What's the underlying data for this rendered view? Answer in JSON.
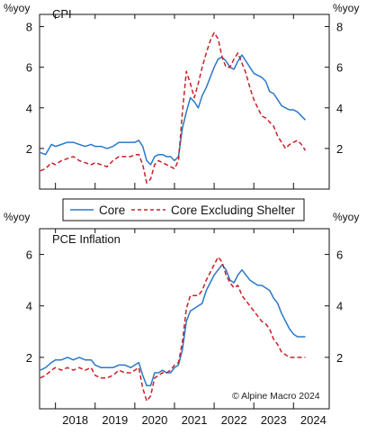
{
  "chart_data": [
    {
      "type": "line",
      "title": "CPI",
      "unit_left": "%yoy",
      "unit_right": "%yoy",
      "ylim": [
        0,
        8.6
      ],
      "yticks": [
        2,
        4,
        6,
        8
      ],
      "xlim": [
        2017.6,
        2024.9
      ],
      "series": [
        {
          "name": "Core",
          "color": "#2a78c8",
          "style": "solid",
          "x": [
            2017.62,
            2017.75,
            2017.9,
            2018.0,
            2018.15,
            2018.3,
            2018.45,
            2018.6,
            2018.75,
            2018.9,
            2019.0,
            2019.15,
            2019.3,
            2019.45,
            2019.6,
            2019.75,
            2019.9,
            2020.0,
            2020.1,
            2020.2,
            2020.3,
            2020.4,
            2020.5,
            2020.6,
            2020.7,
            2020.8,
            2020.9,
            2021.0,
            2021.1,
            2021.2,
            2021.3,
            2021.4,
            2021.5,
            2021.6,
            2021.7,
            2021.8,
            2021.9,
            2022.0,
            2022.1,
            2022.2,
            2022.3,
            2022.4,
            2022.5,
            2022.6,
            2022.7,
            2022.8,
            2022.9,
            2023.0,
            2023.1,
            2023.2,
            2023.3,
            2023.4,
            2023.5,
            2023.6,
            2023.7,
            2023.8,
            2023.9,
            2024.0,
            2024.1,
            2024.2,
            2024.3
          ],
          "y": [
            1.8,
            1.7,
            2.2,
            2.1,
            2.2,
            2.3,
            2.3,
            2.2,
            2.1,
            2.2,
            2.1,
            2.1,
            2.0,
            2.1,
            2.3,
            2.3,
            2.3,
            2.3,
            2.4,
            2.1,
            1.4,
            1.2,
            1.6,
            1.7,
            1.7,
            1.6,
            1.6,
            1.4,
            1.6,
            3.0,
            3.8,
            4.5,
            4.3,
            4.0,
            4.6,
            5.0,
            5.5,
            6.0,
            6.4,
            6.5,
            6.3,
            6.0,
            5.9,
            6.3,
            6.6,
            6.3,
            6.0,
            5.7,
            5.6,
            5.5,
            5.3,
            4.8,
            4.7,
            4.4,
            4.1,
            4.0,
            3.9,
            3.9,
            3.8,
            3.6,
            3.4
          ]
        },
        {
          "name": "Core Excluding Shelter",
          "color": "#c8202a",
          "style": "dashed",
          "x": [
            2017.62,
            2017.75,
            2017.9,
            2018.0,
            2018.15,
            2018.3,
            2018.45,
            2018.6,
            2018.75,
            2018.9,
            2019.0,
            2019.15,
            2019.3,
            2019.45,
            2019.6,
            2019.75,
            2019.9,
            2020.0,
            2020.1,
            2020.2,
            2020.3,
            2020.4,
            2020.5,
            2020.6,
            2020.7,
            2020.8,
            2020.9,
            2021.0,
            2021.1,
            2021.2,
            2021.3,
            2021.4,
            2021.5,
            2021.6,
            2021.7,
            2021.8,
            2021.9,
            2022.0,
            2022.1,
            2022.2,
            2022.3,
            2022.4,
            2022.5,
            2022.6,
            2022.7,
            2022.8,
            2022.9,
            2023.0,
            2023.1,
            2023.2,
            2023.3,
            2023.4,
            2023.5,
            2023.6,
            2023.7,
            2023.8,
            2023.9,
            2024.0,
            2024.1,
            2024.2,
            2024.3
          ],
          "y": [
            0.9,
            1.0,
            1.3,
            1.2,
            1.4,
            1.5,
            1.6,
            1.4,
            1.3,
            1.2,
            1.3,
            1.2,
            1.1,
            1.4,
            1.6,
            1.6,
            1.6,
            1.7,
            1.7,
            1.2,
            0.3,
            0.5,
            1.2,
            1.4,
            1.3,
            1.2,
            1.1,
            1.0,
            1.4,
            3.8,
            5.8,
            5.2,
            4.5,
            5.2,
            6.0,
            6.7,
            7.3,
            7.7,
            7.4,
            6.5,
            6.0,
            6.0,
            6.4,
            6.7,
            6.2,
            5.7,
            5.0,
            4.4,
            4.0,
            3.6,
            3.5,
            3.3,
            3.1,
            2.6,
            2.3,
            2.0,
            2.2,
            2.3,
            2.4,
            2.2,
            1.9
          ]
        }
      ]
    },
    {
      "type": "line",
      "title": "PCE Inflation",
      "unit_left": "%yoy",
      "unit_right": "%yoy",
      "ylim": [
        0,
        7.0
      ],
      "yticks": [
        2,
        4,
        6
      ],
      "xlim": [
        2017.6,
        2024.9
      ],
      "xticks": [
        "2018",
        "2019",
        "2020",
        "2021",
        "2022",
        "2023",
        "2024"
      ],
      "credit": "© Alpine Macro 2024",
      "series": [
        {
          "name": "Core",
          "color": "#2a78c8",
          "style": "solid",
          "x": [
            2017.62,
            2017.75,
            2017.9,
            2018.0,
            2018.15,
            2018.3,
            2018.45,
            2018.6,
            2018.75,
            2018.9,
            2019.0,
            2019.15,
            2019.3,
            2019.45,
            2019.6,
            2019.75,
            2019.9,
            2020.0,
            2020.1,
            2020.2,
            2020.3,
            2020.4,
            2020.5,
            2020.6,
            2020.7,
            2020.8,
            2020.9,
            2021.0,
            2021.1,
            2021.2,
            2021.3,
            2021.4,
            2021.5,
            2021.6,
            2021.7,
            2021.8,
            2021.9,
            2022.0,
            2022.1,
            2022.2,
            2022.3,
            2022.4,
            2022.5,
            2022.6,
            2022.7,
            2022.8,
            2022.9,
            2023.0,
            2023.1,
            2023.2,
            2023.3,
            2023.4,
            2023.5,
            2023.6,
            2023.7,
            2023.8,
            2023.9,
            2024.0,
            2024.1,
            2024.2,
            2024.3
          ],
          "y": [
            1.5,
            1.6,
            1.8,
            1.9,
            1.9,
            2.0,
            1.9,
            2.0,
            1.9,
            1.9,
            1.7,
            1.6,
            1.6,
            1.6,
            1.7,
            1.7,
            1.6,
            1.7,
            1.8,
            1.3,
            0.9,
            0.9,
            1.4,
            1.4,
            1.5,
            1.4,
            1.4,
            1.6,
            1.7,
            2.3,
            3.4,
            3.8,
            3.9,
            4.0,
            4.1,
            4.6,
            4.9,
            5.2,
            5.4,
            5.6,
            5.4,
            5.0,
            4.9,
            5.2,
            5.4,
            5.2,
            5.0,
            4.9,
            4.8,
            4.8,
            4.7,
            4.6,
            4.3,
            4.1,
            3.7,
            3.4,
            3.1,
            2.9,
            2.8,
            2.8,
            2.8
          ]
        },
        {
          "name": "Core Excluding Shelter",
          "color": "#c8202a",
          "style": "dashed",
          "x": [
            2017.62,
            2017.75,
            2017.9,
            2018.0,
            2018.15,
            2018.3,
            2018.45,
            2018.6,
            2018.75,
            2018.9,
            2019.0,
            2019.15,
            2019.3,
            2019.45,
            2019.6,
            2019.75,
            2019.9,
            2020.0,
            2020.1,
            2020.2,
            2020.3,
            2020.4,
            2020.5,
            2020.6,
            2020.7,
            2020.8,
            2020.9,
            2021.0,
            2021.1,
            2021.2,
            2021.3,
            2021.4,
            2021.5,
            2021.6,
            2021.7,
            2021.8,
            2021.9,
            2022.0,
            2022.1,
            2022.2,
            2022.3,
            2022.4,
            2022.5,
            2022.6,
            2022.7,
            2022.8,
            2022.9,
            2023.0,
            2023.1,
            2023.2,
            2023.3,
            2023.4,
            2023.5,
            2023.6,
            2023.7,
            2023.8,
            2023.9,
            2024.0,
            2024.1,
            2024.2,
            2024.3
          ],
          "y": [
            1.2,
            1.3,
            1.5,
            1.6,
            1.5,
            1.6,
            1.5,
            1.6,
            1.5,
            1.6,
            1.3,
            1.2,
            1.2,
            1.3,
            1.5,
            1.4,
            1.4,
            1.5,
            1.6,
            0.8,
            0.3,
            0.5,
            1.2,
            1.3,
            1.4,
            1.4,
            1.5,
            1.7,
            1.8,
            2.6,
            3.9,
            4.4,
            4.4,
            4.4,
            4.6,
            5.0,
            5.3,
            5.6,
            5.9,
            5.7,
            5.2,
            4.9,
            4.7,
            4.8,
            4.4,
            4.2,
            4.0,
            3.8,
            3.6,
            3.4,
            3.3,
            3.1,
            2.7,
            2.5,
            2.2,
            2.1,
            2.0,
            2.0,
            2.0,
            2.0,
            2.0
          ]
        }
      ]
    }
  ],
  "legend": {
    "items": [
      {
        "label": "Core",
        "color": "#2a78c8",
        "style": "solid"
      },
      {
        "label": "Core Excluding Shelter",
        "color": "#c8202a",
        "style": "dashed"
      }
    ]
  }
}
